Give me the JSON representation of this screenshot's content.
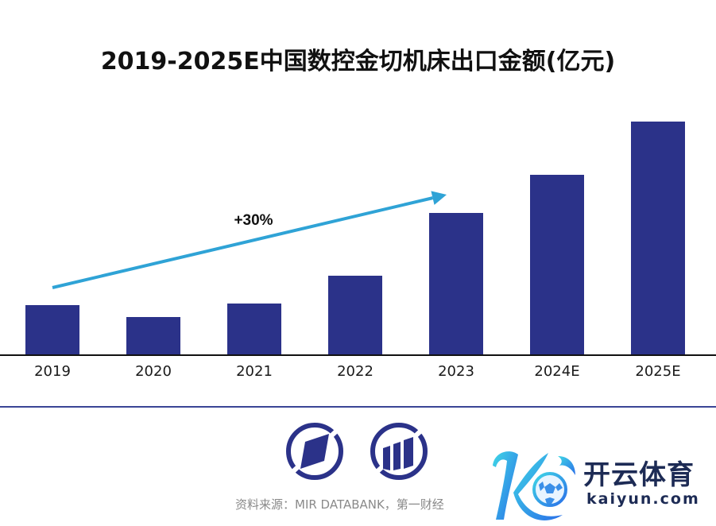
{
  "chart_data": {
    "type": "bar",
    "title": "2019-2025E中国数控金切机床出口金额(亿元)",
    "categories": [
      "2019",
      "2020",
      "2021",
      "2022",
      "2023",
      "2024E",
      "2025E"
    ],
    "values": [
      62,
      47,
      64,
      99,
      178,
      226,
      293
    ],
    "value_note": "relative magnitudes estimated from bar heights; no value axis shown",
    "xlabel": "",
    "ylabel": "",
    "ylim": [
      0,
      300
    ],
    "grid": false,
    "legend": "none",
    "bar_color": "#2b3289",
    "annotations": [
      {
        "text": "+30%",
        "type": "trend-arrow",
        "from_category": "2019",
        "to_category": "2023",
        "color": "#2fa3d6"
      }
    ]
  },
  "footer": {
    "source": "资料来源：MIR DATABANK，第一财经"
  },
  "branding": {
    "name_cn": "开云体育",
    "name_en": "kaiyun.com"
  },
  "colors": {
    "bar": "#2b3289",
    "arrow": "#2fa3d6",
    "divider": "#3a4596",
    "icon": "#2b3289",
    "brand_text": "#1d2b55"
  }
}
